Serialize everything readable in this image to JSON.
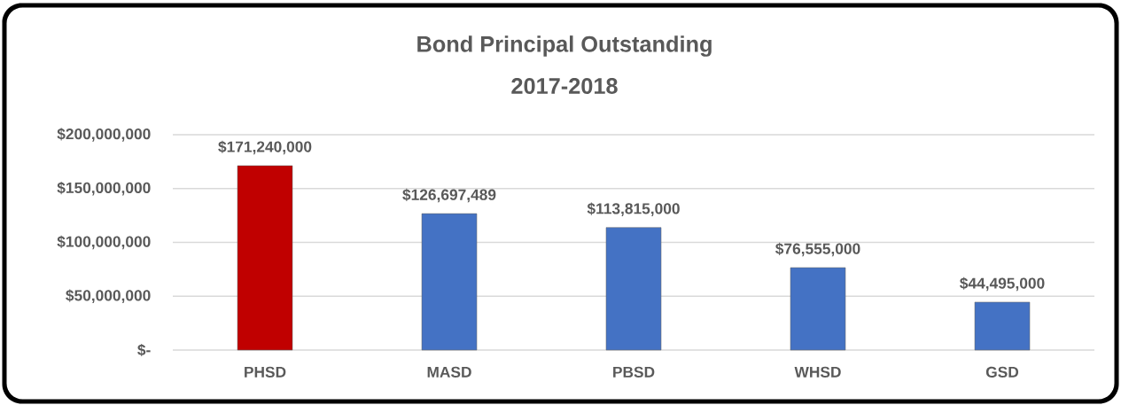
{
  "chart_data": {
    "type": "bar",
    "title": "Bond Principal Outstanding",
    "subtitle": "2017-2018",
    "categories": [
      "PHSD",
      "MASD",
      "PBSD",
      "WHSD",
      "GSD"
    ],
    "values": [
      171240000,
      126697489,
      113815000,
      76555000,
      44495000
    ],
    "value_labels": [
      "$171,240,000",
      "$126,697,489",
      "$113,815,000",
      "$76,555,000",
      "$44,495,000"
    ],
    "colors": [
      "#c00000",
      "#4472c4",
      "#4472c4",
      "#4472c4",
      "#4472c4"
    ],
    "ylim": [
      0,
      200000000
    ],
    "yticks": [
      {
        "value": 0,
        "label": "$-"
      },
      {
        "value": 50000000,
        "label": "$50,000,000"
      },
      {
        "value": 100000000,
        "label": "$100,000,000"
      },
      {
        "value": 150000000,
        "label": "$150,000,000"
      },
      {
        "value": 200000000,
        "label": "$200,000,000"
      }
    ],
    "grid": "y"
  }
}
